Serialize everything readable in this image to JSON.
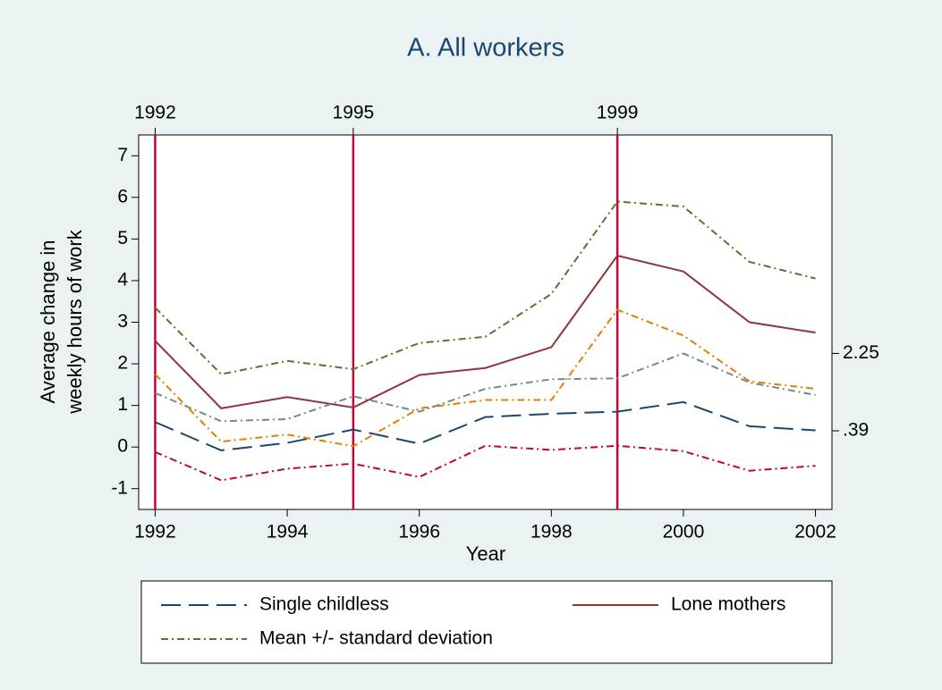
{
  "chart_data": {
    "type": "line",
    "title": "A. All workers",
    "ylabel": [
      "Average change in",
      "weekly hours of work"
    ],
    "xlabel": "Year",
    "x": [
      1992,
      1993,
      1994,
      1995,
      1996,
      1997,
      1998,
      1999,
      2000,
      2001,
      2002
    ],
    "xlim": [
      1991.75,
      2002.25
    ],
    "xticks": [
      1992,
      1994,
      1996,
      1998,
      2000,
      2002
    ],
    "x2ticks": [
      1992,
      1995,
      1999
    ],
    "x2line_color": "#c10534",
    "ylim": [
      -1.5,
      7.5
    ],
    "yticks": [
      -1,
      0,
      1,
      2,
      3,
      4,
      5,
      6,
      7
    ],
    "y2lim": [
      -1.5,
      7.5
    ],
    "y2ticks": [
      2.25,
      {
        "value": 0.39,
        "label": ".39"
      }
    ],
    "grid": true,
    "series": [
      {
        "name": "Single childless",
        "color": "#1a476f",
        "dash": "22,9",
        "values": [
          0.6,
          -0.08,
          0.1,
          0.42,
          0.08,
          0.72,
          0.8,
          0.85,
          1.08,
          0.5,
          0.4
        ]
      },
      {
        "name": "Lone mothers",
        "color": "#90353b",
        "values": [
          2.55,
          0.93,
          1.2,
          0.95,
          1.73,
          1.9,
          2.4,
          4.6,
          4.22,
          3.0,
          2.75
        ]
      },
      {
        "name": "Mean +/- standard deviation",
        "color": "#55752f",
        "dash": "8,4,2,4",
        "values": [
          3.35,
          1.75,
          2.07,
          1.87,
          2.5,
          2.65,
          3.68,
          5.9,
          5.78,
          4.45,
          4.05
        ]
      },
      {
        "color": "#c10534",
        "dash": "8,4,2,4",
        "values": [
          -0.12,
          -0.8,
          -0.52,
          -0.4,
          -0.72,
          0.03,
          -0.07,
          0.03,
          -0.1,
          -0.57,
          -0.45
        ]
      },
      {
        "color": "#e37e00",
        "dash": "8,4,2,4",
        "values": [
          1.75,
          0.13,
          0.3,
          0.02,
          0.93,
          1.13,
          1.13,
          3.3,
          2.68,
          1.58,
          1.4
        ]
      },
      {
        "color": "#6e8e84",
        "dash": "8,4,2,4",
        "values": [
          1.3,
          0.62,
          0.67,
          1.22,
          0.85,
          1.4,
          1.63,
          1.65,
          2.25,
          1.55,
          1.25
        ]
      }
    ]
  }
}
